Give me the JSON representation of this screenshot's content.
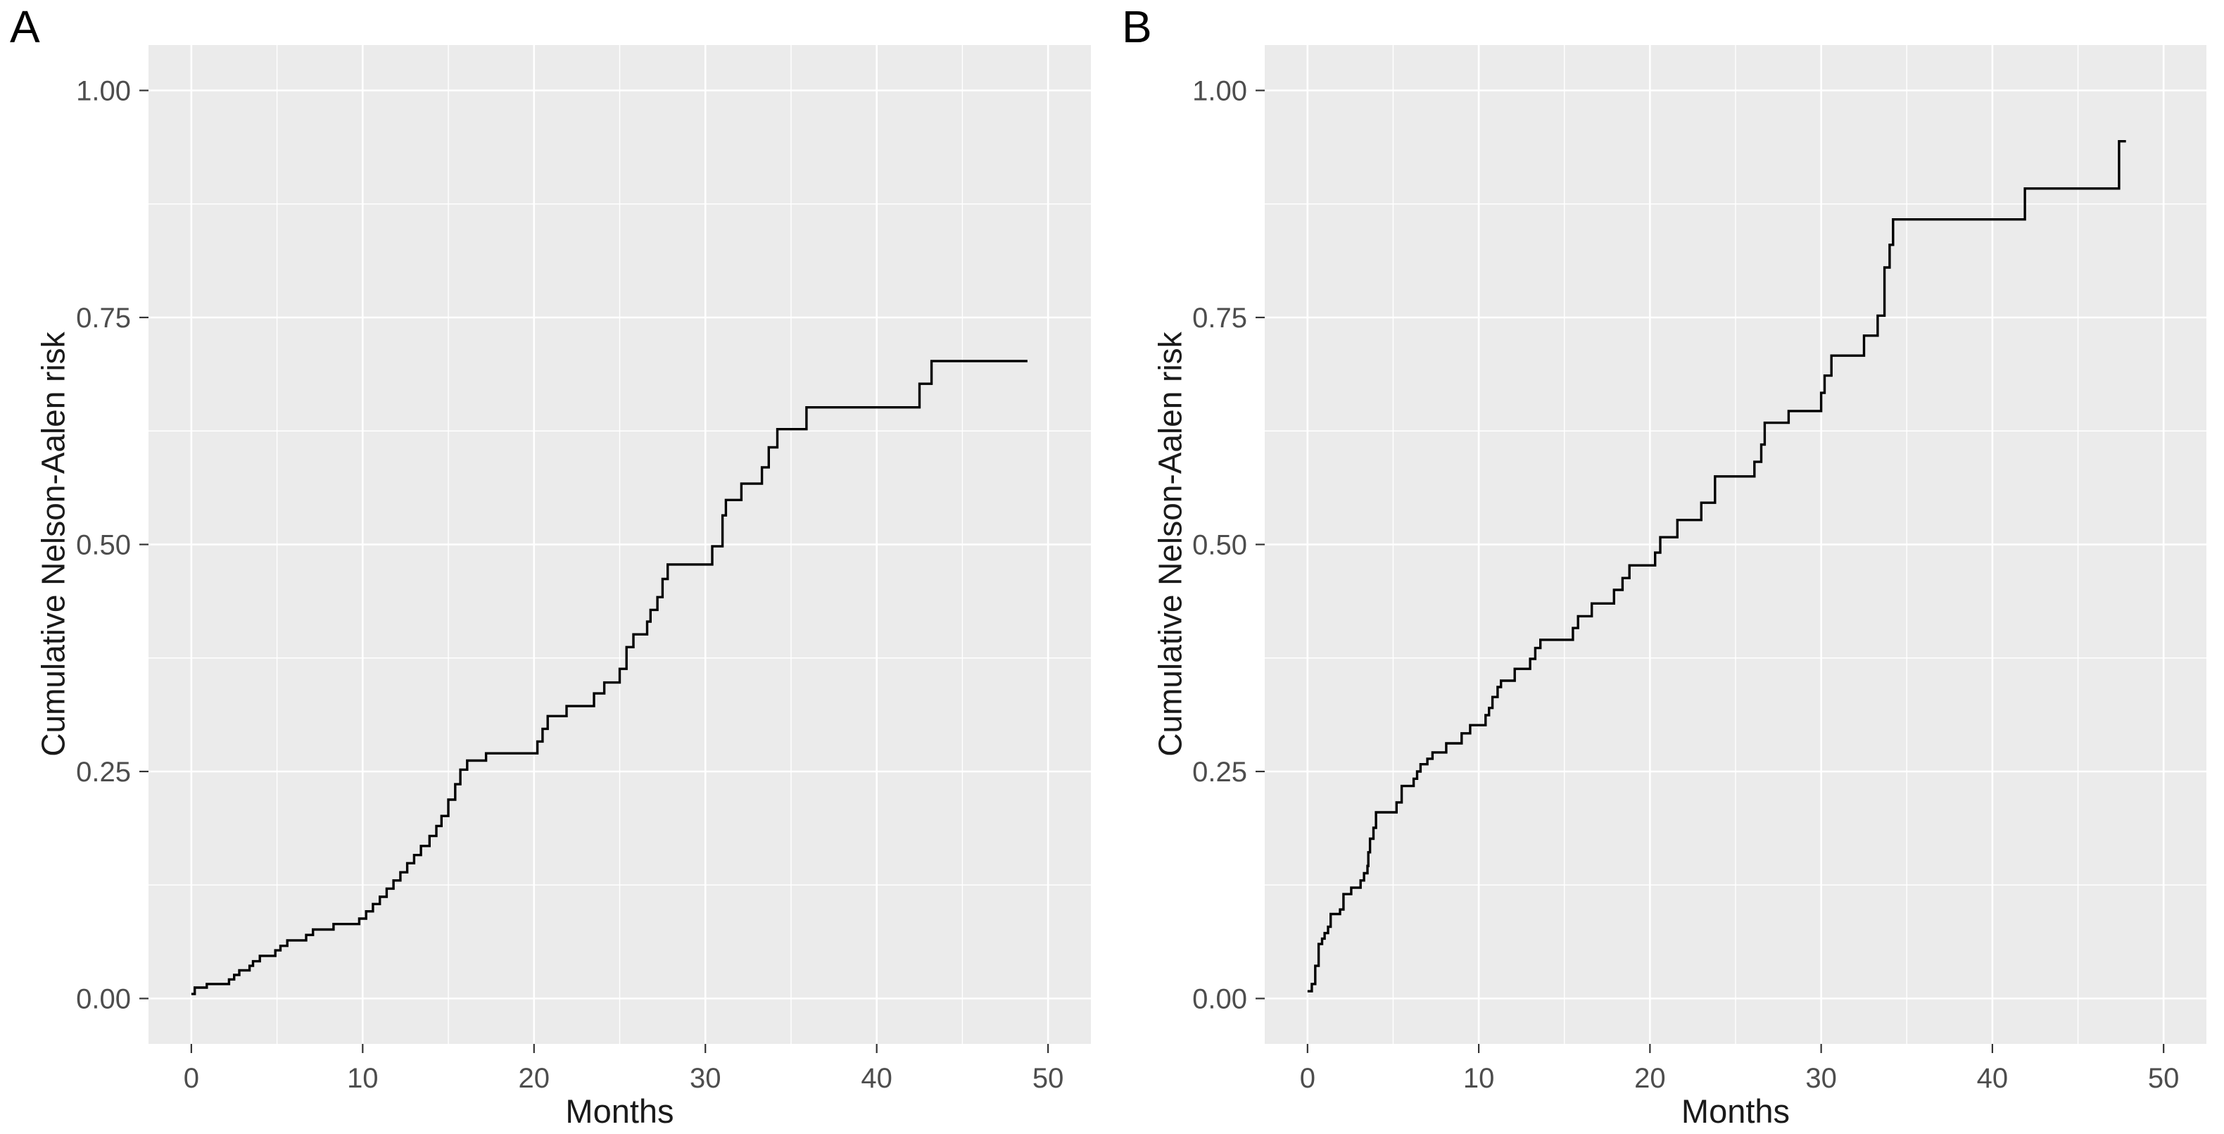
{
  "colors": {
    "figure_background": "#FFFFFF",
    "panel_background": "#EBEBEB",
    "gridline": "#FFFFFF",
    "curve": "#000000",
    "tick_label": "#4D4D4D",
    "tick_mark": "#333333",
    "axis_title": "#1A1A1A",
    "panel_letter": "#000000"
  },
  "chart_data": [
    {
      "type": "line",
      "step": "hv",
      "panel_label": "A",
      "xlabel": "Months",
      "ylabel": "Cumulative Nelson-Aalen risk",
      "xlim": [
        0,
        50
      ],
      "ylim": [
        0,
        1
      ],
      "x_ticks": [
        0,
        10,
        20,
        30,
        40,
        50
      ],
      "x_tick_labels": [
        "0",
        "10",
        "20",
        "30",
        "40",
        "50"
      ],
      "y_ticks": [
        0,
        0.25,
        0.5,
        0.75,
        1
      ],
      "y_tick_labels": [
        "0.00",
        "0.25",
        "0.50",
        "0.75",
        "1.00"
      ],
      "x_minor_ticks": [
        5,
        15,
        25,
        35,
        45
      ],
      "y_minor_ticks": [
        0.125,
        0.375,
        0.625,
        0.875
      ],
      "grid": "on",
      "legend": "none",
      "x_end": 48.8,
      "points": [
        [
          0,
          0.005
        ],
        [
          0.2,
          0.012
        ],
        [
          0.9,
          0.016
        ],
        [
          2.2,
          0.021
        ],
        [
          2.5,
          0.026
        ],
        [
          2.8,
          0.031
        ],
        [
          3.4,
          0.036
        ],
        [
          3.6,
          0.041
        ],
        [
          4.0,
          0.047
        ],
        [
          4.9,
          0.053
        ],
        [
          5.2,
          0.058
        ],
        [
          5.6,
          0.064
        ],
        [
          6.7,
          0.07
        ],
        [
          7.1,
          0.076
        ],
        [
          8.3,
          0.082
        ],
        [
          9.8,
          0.088
        ],
        [
          10.2,
          0.096
        ],
        [
          10.6,
          0.104
        ],
        [
          11.0,
          0.112
        ],
        [
          11.4,
          0.121
        ],
        [
          11.8,
          0.13
        ],
        [
          12.2,
          0.139
        ],
        [
          12.6,
          0.149
        ],
        [
          13.0,
          0.158
        ],
        [
          13.4,
          0.168
        ],
        [
          13.9,
          0.179
        ],
        [
          14.3,
          0.19
        ],
        [
          14.6,
          0.201
        ],
        [
          15.0,
          0.219
        ],
        [
          15.4,
          0.236
        ],
        [
          15.7,
          0.252
        ],
        [
          16.1,
          0.262
        ],
        [
          17.2,
          0.27
        ],
        [
          20.2,
          0.283
        ],
        [
          20.5,
          0.297
        ],
        [
          20.8,
          0.311
        ],
        [
          21.9,
          0.322
        ],
        [
          23.5,
          0.336
        ],
        [
          24.1,
          0.348
        ],
        [
          25.0,
          0.363
        ],
        [
          25.4,
          0.387
        ],
        [
          25.8,
          0.401
        ],
        [
          26.6,
          0.415
        ],
        [
          26.8,
          0.428
        ],
        [
          27.2,
          0.442
        ],
        [
          27.5,
          0.462
        ],
        [
          27.8,
          0.478
        ],
        [
          30.4,
          0.498
        ],
        [
          31.0,
          0.532
        ],
        [
          31.2,
          0.549
        ],
        [
          32.1,
          0.567
        ],
        [
          33.3,
          0.585
        ],
        [
          33.7,
          0.607
        ],
        [
          34.2,
          0.627
        ],
        [
          35.9,
          0.651
        ],
        [
          42.5,
          0.677
        ],
        [
          43.2,
          0.702
        ]
      ]
    },
    {
      "type": "line",
      "step": "hv",
      "panel_label": "B",
      "xlabel": "Months",
      "ylabel": "Cumulative Nelson-Aalen risk",
      "xlim": [
        0,
        50
      ],
      "ylim": [
        0,
        1
      ],
      "x_ticks": [
        0,
        10,
        20,
        30,
        40,
        50
      ],
      "x_tick_labels": [
        "0",
        "10",
        "20",
        "30",
        "40",
        "50"
      ],
      "y_ticks": [
        0,
        0.25,
        0.5,
        0.75,
        1
      ],
      "y_tick_labels": [
        "0.00",
        "0.25",
        "0.50",
        "0.75",
        "1.00"
      ],
      "x_minor_ticks": [
        5,
        15,
        25,
        35,
        45
      ],
      "y_minor_ticks": [
        0.125,
        0.375,
        0.625,
        0.875
      ],
      "grid": "on",
      "legend": "none",
      "x_end": 47.8,
      "points": [
        [
          0,
          0.008
        ],
        [
          0.25,
          0.016
        ],
        [
          0.45,
          0.036
        ],
        [
          0.65,
          0.06
        ],
        [
          0.85,
          0.066
        ],
        [
          1.0,
          0.072
        ],
        [
          1.2,
          0.079
        ],
        [
          1.35,
          0.093
        ],
        [
          1.9,
          0.098
        ],
        [
          2.1,
          0.115
        ],
        [
          2.55,
          0.122
        ],
        [
          3.1,
          0.13
        ],
        [
          3.3,
          0.138
        ],
        [
          3.5,
          0.146
        ],
        [
          3.55,
          0.161
        ],
        [
          3.65,
          0.176
        ],
        [
          3.85,
          0.188
        ],
        [
          4.0,
          0.205
        ],
        [
          5.2,
          0.216
        ],
        [
          5.5,
          0.234
        ],
        [
          6.2,
          0.242
        ],
        [
          6.4,
          0.25
        ],
        [
          6.6,
          0.258
        ],
        [
          7.0,
          0.264
        ],
        [
          7.3,
          0.271
        ],
        [
          8.1,
          0.281
        ],
        [
          9.0,
          0.292
        ],
        [
          9.5,
          0.301
        ],
        [
          10.4,
          0.312
        ],
        [
          10.6,
          0.32
        ],
        [
          10.8,
          0.332
        ],
        [
          11.1,
          0.343
        ],
        [
          11.3,
          0.35
        ],
        [
          12.1,
          0.363
        ],
        [
          13.0,
          0.374
        ],
        [
          13.3,
          0.386
        ],
        [
          13.6,
          0.395
        ],
        [
          15.5,
          0.408
        ],
        [
          15.8,
          0.421
        ],
        [
          16.6,
          0.435
        ],
        [
          17.9,
          0.45
        ],
        [
          18.4,
          0.463
        ],
        [
          18.8,
          0.477
        ],
        [
          20.3,
          0.491
        ],
        [
          20.6,
          0.508
        ],
        [
          21.6,
          0.527
        ],
        [
          23.0,
          0.546
        ],
        [
          23.8,
          0.575
        ],
        [
          26.1,
          0.591
        ],
        [
          26.5,
          0.61
        ],
        [
          26.7,
          0.634
        ],
        [
          28.1,
          0.647
        ],
        [
          30.0,
          0.667
        ],
        [
          30.2,
          0.686
        ],
        [
          30.6,
          0.708
        ],
        [
          32.5,
          0.73
        ],
        [
          33.3,
          0.752
        ],
        [
          33.7,
          0.805
        ],
        [
          34.0,
          0.83
        ],
        [
          34.2,
          0.858
        ],
        [
          41.9,
          0.892
        ],
        [
          47.4,
          0.944
        ]
      ]
    }
  ]
}
